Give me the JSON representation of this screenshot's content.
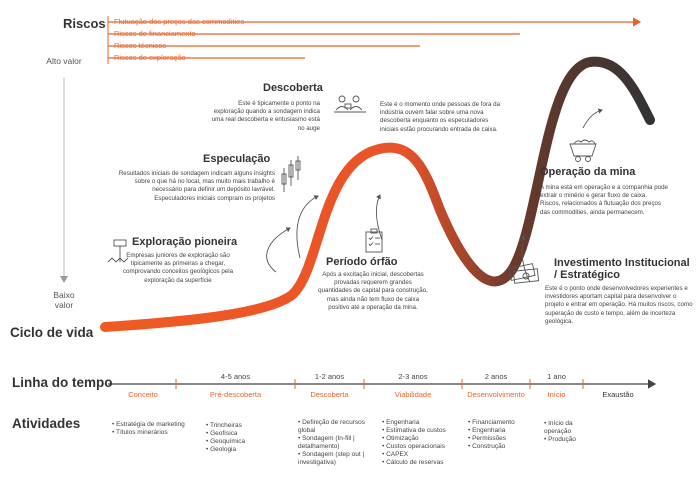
{
  "risks": {
    "title": "Riscos",
    "items": [
      "Flutuação dos preços das commodities",
      "Riscos de financiamento",
      "Riscos técnicos",
      "Riscos de exploração"
    ]
  },
  "axis": {
    "high": "Alto valor",
    "low": "Baixo valor"
  },
  "lifecycle_title": "Ciclo de vida",
  "stages": {
    "pioneer": {
      "title": "Exploração pioneira",
      "desc": "Empresas juniores de exploração são tipicamente as primeiras a chegar, comprovando conceitos geológicos pela exploração da superfície"
    },
    "speculation": {
      "title": "Especulação",
      "desc": "Resultados iniciais de sondagem indicam alguns insights sobre o que há no local, mas muito mais trabalho é necessário para definir um depósito lavrável. Especuladores iniciais compram os projetos"
    },
    "discovery": {
      "title": "Descoberta",
      "desc": "Este é tipicamente o ponto na exploração quando a sondagem indica uma real descoberta e entusiasmo está no auge"
    },
    "news": {
      "desc": "Este é o momento onde pessoas de fora da indústria ouvem falar sobre uma nova descoberta enquanto os especuladores iniciais estão procurando entrada de caixa."
    },
    "orphan": {
      "title": "Período órfão",
      "desc": "Após a excitação inicial, descobertas provadas requerem grandes quantidades de capital para construção, mas ainda não tem fluxo de caixa positivo até a operação da mina."
    },
    "institutional": {
      "title": "Investimento Institucional / Estratégico",
      "desc": "Este é o ponto onde desenvolvedores experientes e investidores aportam capital para desenvolver o projeto e entrar em operação. Há muitos riscos, como superação de custo e tempo, além de incerteza geológica."
    },
    "operation": {
      "title": "Operação da mina",
      "desc": "A mina está em operação e a companhia pode extrair o minério e gerar fluxo de caixa. Riscos, relacionados à flutuação dos preços das commodities, ainda permanecem."
    }
  },
  "timeline": {
    "title": "Linha do tempo",
    "phases": [
      {
        "label": "Conceito",
        "duration": ""
      },
      {
        "label": "Pré-descoberta",
        "duration": "4-5 anos"
      },
      {
        "label": "Descoberta",
        "duration": "1-2 anos"
      },
      {
        "label": "Viabilidade",
        "duration": "2-3 anos"
      },
      {
        "label": "Desenvolvimento",
        "duration": "2 anos"
      },
      {
        "label": "Início",
        "duration": "1 ano"
      },
      {
        "label": "Exaustão",
        "duration": ""
      }
    ]
  },
  "activities": {
    "title": "Atividades",
    "columns": [
      [
        "Estratégia de marketing",
        "Títulos minerários"
      ],
      [
        "Trincheiras",
        "Geofísica",
        "Geoquímica",
        "Geologia"
      ],
      [
        "Definição de recursos global",
        "Sondagem (In-fill | detalhamento)",
        "Sondagem (step out | investigativa)"
      ],
      [
        "Engenharia",
        "Estimativa de custos",
        "Otimização",
        "Custos operacionais",
        "CAPEX",
        "Cálculo de reservas"
      ],
      [
        "Financiamento",
        "Engenharia",
        "Permissões",
        "Construção"
      ],
      [
        "Início da operação",
        "Produção"
      ]
    ]
  },
  "colors": {
    "accent": "#e8632b",
    "curve_start": "#f15a22",
    "curve_end": "#333333"
  }
}
